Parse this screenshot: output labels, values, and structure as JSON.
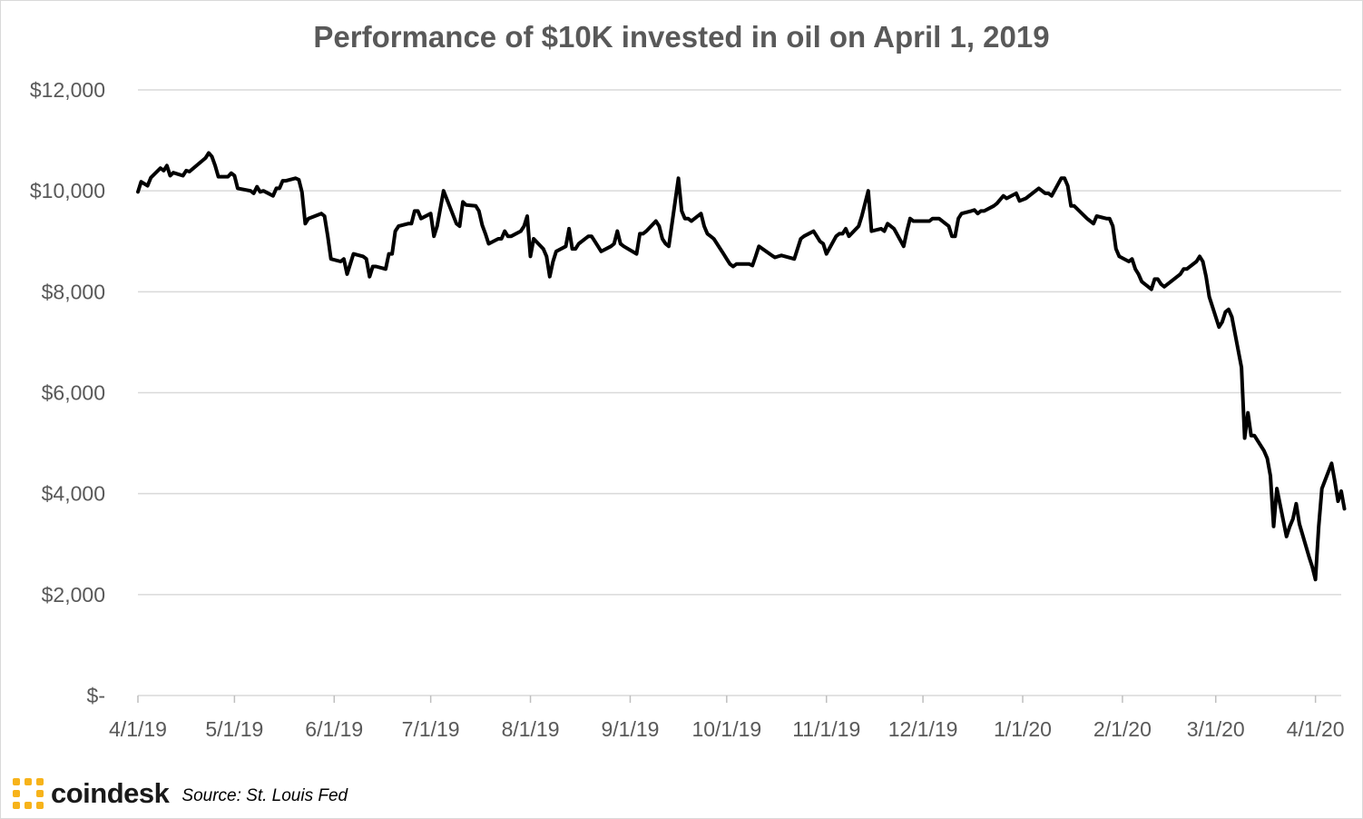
{
  "chart_data": {
    "type": "line",
    "title": "Performance of $10K invested in oil on April 1, 2019",
    "xlabel": "",
    "ylabel": "",
    "ylim": [
      0,
      12000
    ],
    "y_ticks": [
      0,
      2000,
      4000,
      6000,
      8000,
      10000,
      12000
    ],
    "y_tick_labels": [
      "$-",
      "$2,000",
      "$4,000",
      "$6,000",
      "$8,000",
      "$10,000",
      "$12,000"
    ],
    "x_range": [
      "2019-04-01",
      "2020-04-09"
    ],
    "x_ticks": [
      "2019-04-01",
      "2019-05-01",
      "2019-06-01",
      "2019-07-01",
      "2019-08-01",
      "2019-09-01",
      "2019-10-01",
      "2019-11-01",
      "2019-12-01",
      "2020-01-01",
      "2020-02-01",
      "2020-03-01",
      "2020-04-01"
    ],
    "x_tick_labels": [
      "4/1/19",
      "5/1/19",
      "6/1/19",
      "7/1/19",
      "8/1/19",
      "9/1/19",
      "10/1/19",
      "11/1/19",
      "12/1/19",
      "1/1/20",
      "2/1/20",
      "3/1/20",
      "4/1/20"
    ],
    "grid": true,
    "legend": "none",
    "line_color": "#000000",
    "series": [
      {
        "points": [
          [
            "2019-04-01",
            9980
          ],
          [
            "2019-04-02",
            10180
          ],
          [
            "2019-04-04",
            10100
          ],
          [
            "2019-04-05",
            10260
          ],
          [
            "2019-04-08",
            10450
          ],
          [
            "2019-04-09",
            10400
          ],
          [
            "2019-04-10",
            10500
          ],
          [
            "2019-04-11",
            10300
          ],
          [
            "2019-04-12",
            10360
          ],
          [
            "2019-04-15",
            10300
          ],
          [
            "2019-04-16",
            10400
          ],
          [
            "2019-04-17",
            10380
          ],
          [
            "2019-04-22",
            10650
          ],
          [
            "2019-04-23",
            10750
          ],
          [
            "2019-04-24",
            10680
          ],
          [
            "2019-04-25",
            10500
          ],
          [
            "2019-04-26",
            10280
          ],
          [
            "2019-04-29",
            10280
          ],
          [
            "2019-04-30",
            10350
          ],
          [
            "2019-05-01",
            10300
          ],
          [
            "2019-05-02",
            10050
          ],
          [
            "2019-05-06",
            10000
          ],
          [
            "2019-05-07",
            9950
          ],
          [
            "2019-05-08",
            10080
          ],
          [
            "2019-05-09",
            9980
          ],
          [
            "2019-05-10",
            10000
          ],
          [
            "2019-05-13",
            9900
          ],
          [
            "2019-05-14",
            10050
          ],
          [
            "2019-05-15",
            10050
          ],
          [
            "2019-05-16",
            10200
          ],
          [
            "2019-05-17",
            10200
          ],
          [
            "2019-05-20",
            10250
          ],
          [
            "2019-05-21",
            10220
          ],
          [
            "2019-05-22",
            9970
          ],
          [
            "2019-05-23",
            9350
          ],
          [
            "2019-05-24",
            9450
          ],
          [
            "2019-05-28",
            9550
          ],
          [
            "2019-05-29",
            9500
          ],
          [
            "2019-05-30",
            9100
          ],
          [
            "2019-05-31",
            8650
          ],
          [
            "2019-06-03",
            8600
          ],
          [
            "2019-06-04",
            8650
          ],
          [
            "2019-06-05",
            8350
          ],
          [
            "2019-06-07",
            8750
          ],
          [
            "2019-06-10",
            8700
          ],
          [
            "2019-06-11",
            8650
          ],
          [
            "2019-06-12",
            8300
          ],
          [
            "2019-06-13",
            8500
          ],
          [
            "2019-06-14",
            8500
          ],
          [
            "2019-06-17",
            8450
          ],
          [
            "2019-06-18",
            8750
          ],
          [
            "2019-06-19",
            8750
          ],
          [
            "2019-06-20",
            9200
          ],
          [
            "2019-06-21",
            9300
          ],
          [
            "2019-06-24",
            9350
          ],
          [
            "2019-06-25",
            9350
          ],
          [
            "2019-06-26",
            9600
          ],
          [
            "2019-06-27",
            9600
          ],
          [
            "2019-06-28",
            9450
          ],
          [
            "2019-07-01",
            9550
          ],
          [
            "2019-07-02",
            9100
          ],
          [
            "2019-07-03",
            9300
          ],
          [
            "2019-07-05",
            10000
          ],
          [
            "2019-07-09",
            9350
          ],
          [
            "2019-07-10",
            9300
          ],
          [
            "2019-07-11",
            9780
          ],
          [
            "2019-07-12",
            9720
          ],
          [
            "2019-07-15",
            9700
          ],
          [
            "2019-07-16",
            9600
          ],
          [
            "2019-07-17",
            9320
          ],
          [
            "2019-07-18",
            9150
          ],
          [
            "2019-07-19",
            8950
          ],
          [
            "2019-07-22",
            9050
          ],
          [
            "2019-07-23",
            9050
          ],
          [
            "2019-07-24",
            9200
          ],
          [
            "2019-07-25",
            9100
          ],
          [
            "2019-07-26",
            9100
          ],
          [
            "2019-07-29",
            9200
          ],
          [
            "2019-07-30",
            9300
          ],
          [
            "2019-07-31",
            9500
          ],
          [
            "2019-08-01",
            8700
          ],
          [
            "2019-08-02",
            9050
          ],
          [
            "2019-08-05",
            8850
          ],
          [
            "2019-08-06",
            8700
          ],
          [
            "2019-08-07",
            8300
          ],
          [
            "2019-08-08",
            8600
          ],
          [
            "2019-08-09",
            8800
          ],
          [
            "2019-08-12",
            8900
          ],
          [
            "2019-08-13",
            9250
          ],
          [
            "2019-08-14",
            8850
          ],
          [
            "2019-08-15",
            8850
          ],
          [
            "2019-08-16",
            8950
          ],
          [
            "2019-08-19",
            9100
          ],
          [
            "2019-08-20",
            9100
          ],
          [
            "2019-08-21",
            9000
          ],
          [
            "2019-08-22",
            8900
          ],
          [
            "2019-08-23",
            8800
          ],
          [
            "2019-08-26",
            8900
          ],
          [
            "2019-08-27",
            8950
          ],
          [
            "2019-08-28",
            9200
          ],
          [
            "2019-08-29",
            8950
          ],
          [
            "2019-08-30",
            8900
          ],
          [
            "2019-09-03",
            8750
          ],
          [
            "2019-09-04",
            9150
          ],
          [
            "2019-09-05",
            9150
          ],
          [
            "2019-09-06",
            9200
          ],
          [
            "2019-09-09",
            9400
          ],
          [
            "2019-09-10",
            9300
          ],
          [
            "2019-09-11",
            9050
          ],
          [
            "2019-09-12",
            8950
          ],
          [
            "2019-09-13",
            8900
          ],
          [
            "2019-09-16",
            10250
          ],
          [
            "2019-09-17",
            9600
          ],
          [
            "2019-09-18",
            9450
          ],
          [
            "2019-09-19",
            9450
          ],
          [
            "2019-09-20",
            9400
          ],
          [
            "2019-09-23",
            9550
          ],
          [
            "2019-09-24",
            9300
          ],
          [
            "2019-09-25",
            9150
          ],
          [
            "2019-09-26",
            9100
          ],
          [
            "2019-09-27",
            9050
          ],
          [
            "2019-09-30",
            8750
          ],
          [
            "2019-10-01",
            8650
          ],
          [
            "2019-10-02",
            8550
          ],
          [
            "2019-10-03",
            8500
          ],
          [
            "2019-10-04",
            8550
          ],
          [
            "2019-10-08",
            8550
          ],
          [
            "2019-10-09",
            8520
          ],
          [
            "2019-10-10",
            8700
          ],
          [
            "2019-10-11",
            8900
          ],
          [
            "2019-10-15",
            8720
          ],
          [
            "2019-10-16",
            8680
          ],
          [
            "2019-10-17",
            8700
          ],
          [
            "2019-10-18",
            8720
          ],
          [
            "2019-10-22",
            8650
          ],
          [
            "2019-10-24",
            9050
          ],
          [
            "2019-10-25",
            9100
          ],
          [
            "2019-10-28",
            9200
          ],
          [
            "2019-10-29",
            9100
          ],
          [
            "2019-10-30",
            9000
          ],
          [
            "2019-10-31",
            8950
          ],
          [
            "2019-11-01",
            8750
          ],
          [
            "2019-11-04",
            9100
          ],
          [
            "2019-11-05",
            9150
          ],
          [
            "2019-11-06",
            9150
          ],
          [
            "2019-11-07",
            9250
          ],
          [
            "2019-11-08",
            9100
          ],
          [
            "2019-11-11",
            9300
          ],
          [
            "2019-11-12",
            9500
          ],
          [
            "2019-11-14",
            10000
          ],
          [
            "2019-11-15",
            9200
          ],
          [
            "2019-11-18",
            9250
          ],
          [
            "2019-11-19",
            9200
          ],
          [
            "2019-11-20",
            9350
          ],
          [
            "2019-11-21",
            9300
          ],
          [
            "2019-11-22",
            9250
          ],
          [
            "2019-11-25",
            8900
          ],
          [
            "2019-11-26",
            9200
          ],
          [
            "2019-11-27",
            9450
          ],
          [
            "2019-11-28",
            9400
          ],
          [
            "2019-12-02",
            9400
          ],
          [
            "2019-12-03",
            9400
          ],
          [
            "2019-12-04",
            9450
          ],
          [
            "2019-12-05",
            9450
          ],
          [
            "2019-12-06",
            9450
          ],
          [
            "2019-12-09",
            9300
          ],
          [
            "2019-12-10",
            9100
          ],
          [
            "2019-12-11",
            9100
          ],
          [
            "2019-12-12",
            9450
          ],
          [
            "2019-12-13",
            9550
          ],
          [
            "2019-12-16",
            9600
          ],
          [
            "2019-12-17",
            9620
          ],
          [
            "2019-12-18",
            9550
          ],
          [
            "2019-12-19",
            9600
          ],
          [
            "2019-12-20",
            9600
          ],
          [
            "2019-12-23",
            9700
          ],
          [
            "2019-12-24",
            9750
          ],
          [
            "2019-12-26",
            9900
          ],
          [
            "2019-12-27",
            9850
          ],
          [
            "2019-12-30",
            9950
          ],
          [
            "2019-12-31",
            9800
          ],
          [
            "2020-01-02",
            9850
          ],
          [
            "2020-01-06",
            10050
          ],
          [
            "2020-01-07",
            10000
          ],
          [
            "2020-01-08",
            9950
          ],
          [
            "2020-01-09",
            9950
          ],
          [
            "2020-01-10",
            9900
          ],
          [
            "2020-01-13",
            10250
          ],
          [
            "2020-01-14",
            10250
          ],
          [
            "2020-01-15",
            10100
          ],
          [
            "2020-01-16",
            9700
          ],
          [
            "2020-01-17",
            9700
          ],
          [
            "2020-01-21",
            9450
          ],
          [
            "2020-01-22",
            9400
          ],
          [
            "2020-01-23",
            9350
          ],
          [
            "2020-01-24",
            9500
          ],
          [
            "2020-01-27",
            9450
          ],
          [
            "2020-01-28",
            9450
          ],
          [
            "2020-01-29",
            9300
          ],
          [
            "2020-01-30",
            8850
          ],
          [
            "2020-01-31",
            8700
          ],
          [
            "2020-02-03",
            8600
          ],
          [
            "2020-02-04",
            8650
          ],
          [
            "2020-02-05",
            8450
          ],
          [
            "2020-02-06",
            8350
          ],
          [
            "2020-02-07",
            8200
          ],
          [
            "2020-02-10",
            8050
          ],
          [
            "2020-02-11",
            8250
          ],
          [
            "2020-02-12",
            8250
          ],
          [
            "2020-02-13",
            8150
          ],
          [
            "2020-02-14",
            8100
          ],
          [
            "2020-02-18",
            8300
          ],
          [
            "2020-02-19",
            8350
          ],
          [
            "2020-02-20",
            8450
          ],
          [
            "2020-02-21",
            8450
          ],
          [
            "2020-02-24",
            8600
          ],
          [
            "2020-02-25",
            8700
          ],
          [
            "2020-02-26",
            8600
          ],
          [
            "2020-02-27",
            8300
          ],
          [
            "2020-02-28",
            7900
          ],
          [
            "2020-03-02",
            7300
          ],
          [
            "2020-03-03",
            7400
          ],
          [
            "2020-03-04",
            7600
          ],
          [
            "2020-03-05",
            7650
          ],
          [
            "2020-03-06",
            7500
          ],
          [
            "2020-03-09",
            6500
          ],
          [
            "2020-03-10",
            5100
          ],
          [
            "2020-03-11",
            5600
          ],
          [
            "2020-03-12",
            5150
          ],
          [
            "2020-03-13",
            5150
          ],
          [
            "2020-03-16",
            4850
          ],
          [
            "2020-03-17",
            4700
          ],
          [
            "2020-03-18",
            4350
          ],
          [
            "2020-03-19",
            3350
          ],
          [
            "2020-03-20",
            4100
          ],
          [
            "2020-03-23",
            3150
          ],
          [
            "2020-03-24",
            3350
          ],
          [
            "2020-03-25",
            3500
          ],
          [
            "2020-03-26",
            3800
          ],
          [
            "2020-03-27",
            3400
          ],
          [
            "2020-03-30",
            2750
          ],
          [
            "2020-03-31",
            2550
          ],
          [
            "2020-04-01",
            2300
          ],
          [
            "2020-04-02",
            3350
          ],
          [
            "2020-04-03",
            4100
          ],
          [
            "2020-04-06",
            4600
          ],
          [
            "2020-04-07",
            4250
          ],
          [
            "2020-04-08",
            3850
          ],
          [
            "2020-04-09",
            4050
          ],
          [
            "2020-04-10",
            3700
          ]
        ]
      }
    ]
  },
  "footer": {
    "brand": "coindesk",
    "source": "Source: St. Louis Fed",
    "brand_color": "#f7b31a"
  }
}
